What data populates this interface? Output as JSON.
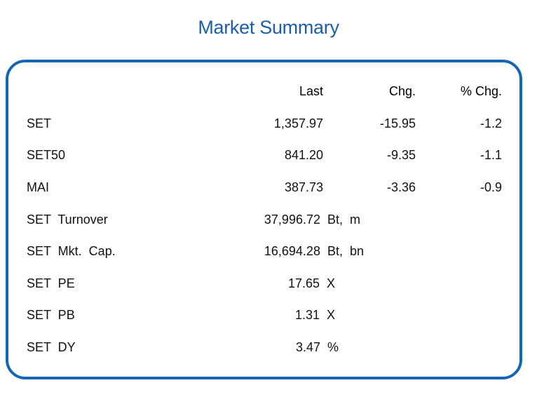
{
  "title": "Market Summary",
  "headers": {
    "last": "Last",
    "chg": "Chg.",
    "pct_chg": "% Chg."
  },
  "rows": [
    {
      "name": "SET",
      "last": "1,357.97",
      "chg": "-15.95",
      "pct": "-1.2"
    },
    {
      "name": "SET50",
      "last": "841.20",
      "chg": "-9.35",
      "pct": "-1.1"
    },
    {
      "name": "MAI",
      "last": "387.73",
      "chg": "-3.36",
      "pct": "-0.9"
    },
    {
      "name": "SET  Turnover",
      "last": "37,996.72  Bt,  m"
    },
    {
      "name": "SET  Mkt.  Cap.",
      "last": "16,694.28  Bt,  bn"
    },
    {
      "name": "SET  PE",
      "last": "17.65  X"
    },
    {
      "name": "SET  PB",
      "last": "1.31  X"
    },
    {
      "name": "SET  DY",
      "last": "3.47  %"
    }
  ],
  "colors": {
    "title": "#1a5fa8",
    "border": "#1366b4"
  }
}
